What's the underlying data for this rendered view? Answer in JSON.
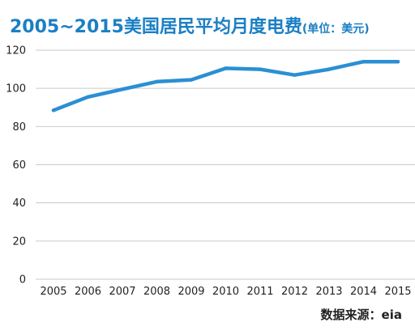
{
  "chart_data": {
    "type": "line",
    "title": "2005~2015美国居民平均月度电费",
    "title_unit": "(单位：美元)",
    "source": "数据来源：eia",
    "xlabel": "",
    "ylabel": "",
    "ylim": [
      0,
      120
    ],
    "yticks": [
      0,
      20,
      40,
      60,
      80,
      100,
      120
    ],
    "grid": true,
    "x": [
      2005,
      2006,
      2007,
      2008,
      2009,
      2010,
      2011,
      2012,
      2013,
      2014,
      2015
    ],
    "xtick_labels": [
      "2005",
      "2006",
      "2007",
      "2008",
      "2009",
      "2010",
      "2011",
      "2012",
      "2013",
      "2014",
      "2015"
    ],
    "series": [
      {
        "values": [
          88.5,
          95.5,
          99.5,
          103.5,
          104.5,
          110.5,
          110,
          107,
          110,
          114,
          114
        ],
        "color": "#2b8fd4"
      }
    ],
    "colors": {
      "title": "#1b7fc4",
      "grid": "#c9c9c9",
      "axis_text": "#222222"
    }
  }
}
